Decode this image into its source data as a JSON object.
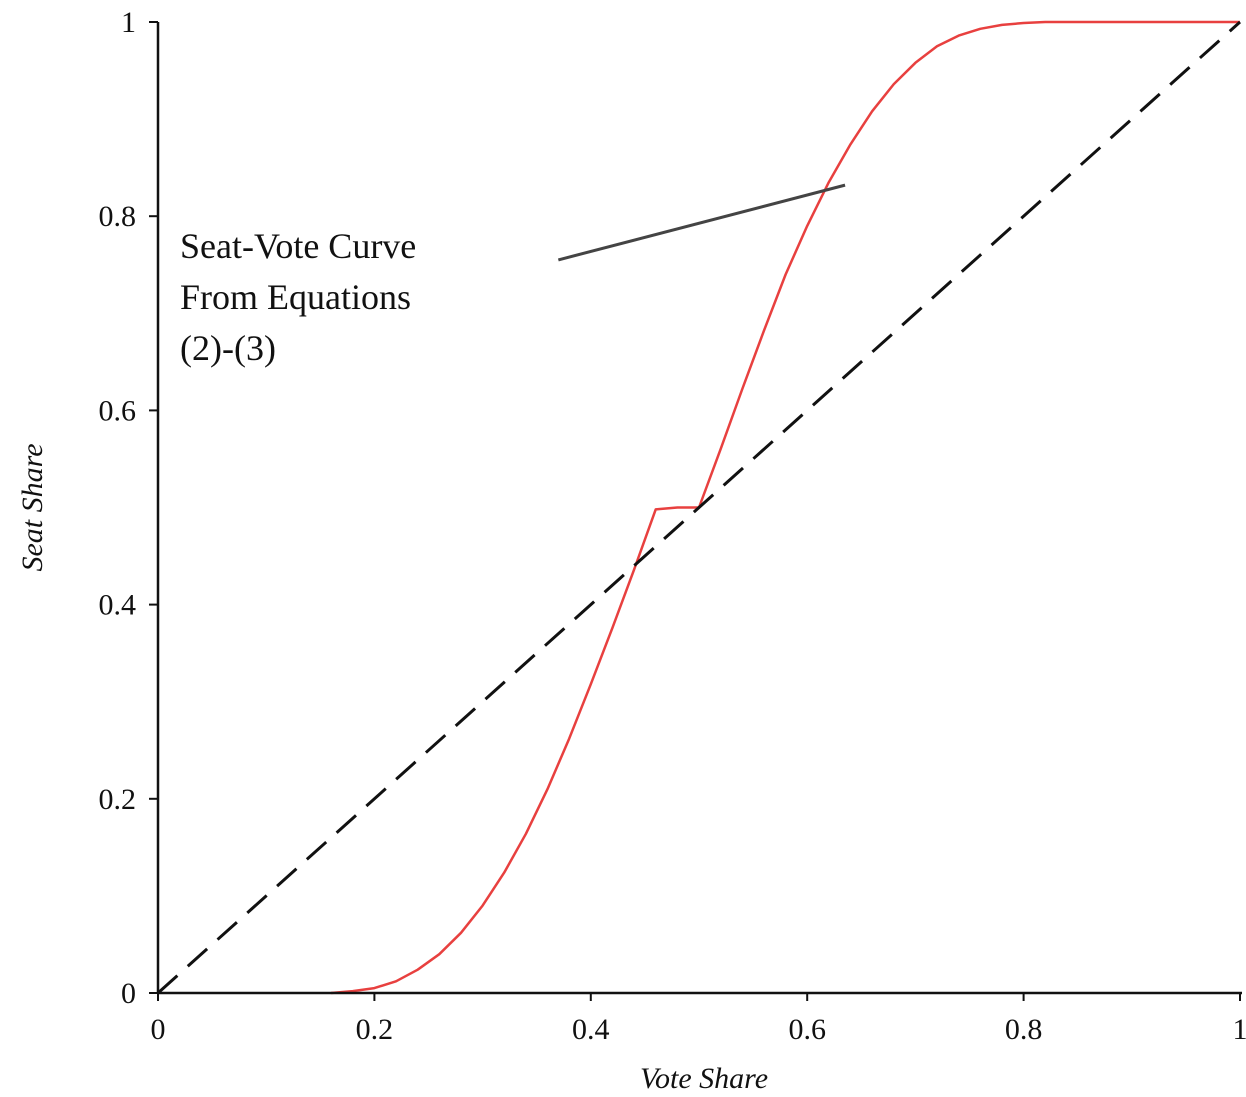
{
  "chart_data": {
    "type": "line",
    "title": "",
    "xlabel": "Vote Share",
    "ylabel": "Seat Share",
    "xlim": [
      0,
      1
    ],
    "ylim": [
      0,
      1
    ],
    "grid": false,
    "x_ticks": [
      {
        "value": 0,
        "label": "0"
      },
      {
        "value": 0.2,
        "label": "0.2"
      },
      {
        "value": 0.4,
        "label": "0.4"
      },
      {
        "value": 0.6,
        "label": "0.6"
      },
      {
        "value": 0.8,
        "label": "0.8"
      },
      {
        "value": 1,
        "label": "1"
      }
    ],
    "y_ticks": [
      {
        "value": 0,
        "label": "0"
      },
      {
        "value": 0.2,
        "label": "0.2"
      },
      {
        "value": 0.4,
        "label": "0.4"
      },
      {
        "value": 0.6,
        "label": "0.6"
      },
      {
        "value": 0.8,
        "label": "0.8"
      },
      {
        "value": 1,
        "label": "1"
      }
    ],
    "series": [
      {
        "style": "solid",
        "color": "#e8403f",
        "x": [
          0.16,
          0.18,
          0.2,
          0.22,
          0.24,
          0.26,
          0.28,
          0.3,
          0.32,
          0.34,
          0.36,
          0.38,
          0.4,
          0.42,
          0.44,
          0.46,
          0.48,
          0.5,
          0.52,
          0.54,
          0.56,
          0.58,
          0.6,
          0.62,
          0.64,
          0.66,
          0.68,
          0.7,
          0.72,
          0.74,
          0.76,
          0.78,
          0.8,
          0.82,
          0.84,
          0.86,
          0.88,
          0.9,
          0.95,
          1.0
        ],
        "y": [
          0.0,
          0.002,
          0.005,
          0.012,
          0.024,
          0.04,
          0.062,
          0.09,
          0.124,
          0.164,
          0.21,
          0.262,
          0.318,
          0.376,
          0.436,
          0.498,
          0.5,
          0.5,
          0.56,
          0.622,
          0.682,
          0.74,
          0.79,
          0.835,
          0.874,
          0.908,
          0.936,
          0.958,
          0.975,
          0.986,
          0.993,
          0.997,
          0.999,
          1.0,
          1.0,
          1.0,
          1.0,
          1.0,
          1.0,
          1.0
        ]
      },
      {
        "style": "dashed",
        "color": "#111111",
        "x": [
          0,
          1
        ],
        "y": [
          0,
          1
        ]
      }
    ],
    "annotations": [
      {
        "text_lines": [
          "Seat-Vote Curve",
          "From Equations",
          "(2)-(3)"
        ],
        "pointer_from": [
          0.37,
          0.755
        ],
        "pointer_to": [
          0.635,
          0.832
        ]
      }
    ]
  }
}
